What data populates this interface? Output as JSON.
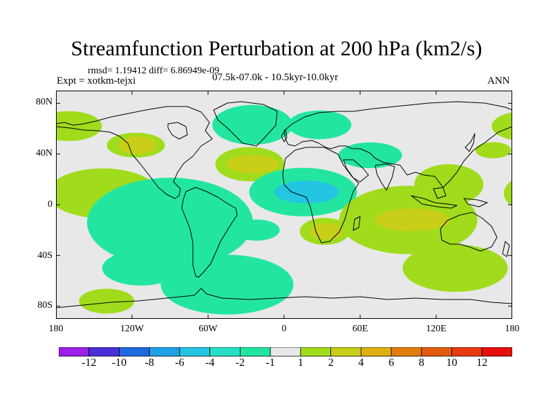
{
  "title": "Streamfunction Perturbation at 200 hPa (km2/s)",
  "stats_line": "rmsd= 1.19412 diff= 6.86949e-09",
  "experiment_line": "Expt = xotkm-tejxi",
  "period_line": "07.5k-07.0k - 10.5kyr-10.0kyr",
  "season_label": "ANN",
  "lat_ticks": [
    "80N",
    "40N",
    "0",
    "40S",
    "80S"
  ],
  "lon_ticks": [
    "180",
    "120W",
    "60W",
    "0",
    "60E",
    "120E",
    "180"
  ],
  "colorbar": {
    "labels": [
      "-12",
      "-10",
      "-8",
      "-6",
      "-4",
      "-2",
      "-1",
      "1",
      "2",
      "4",
      "6",
      "8",
      "10",
      "12"
    ],
    "colors": [
      "#9b1fe8",
      "#4a2fd9",
      "#1f6ae0",
      "#1f9fe6",
      "#23c5e0",
      "#27dfc6",
      "#22e6a0",
      "#e8e8e8",
      "#a0dc1c",
      "#c9cf18",
      "#e0b012",
      "#e37c0c",
      "#e25a0d",
      "#e63a0e",
      "#e60e0e"
    ]
  },
  "map_colors": {
    "background": "#e8e8e8",
    "positive_light": "#a0dc1c",
    "positive_mid": "#c9cf18",
    "negative_light": "#22e6a0",
    "negative_mid": "#23c5e0"
  },
  "chart_data": {
    "type": "heatmap",
    "projection": "cylindrical-equidistant",
    "lon_range": [
      -180,
      180
    ],
    "lat_range": [
      -90,
      90
    ],
    "units": "km2/s",
    "contour_levels": [
      -12,
      -10,
      -8,
      -6,
      -4,
      -2,
      -1,
      1,
      2,
      4,
      6,
      8,
      10,
      12
    ],
    "features": [
      {
        "sign": "positive",
        "max_level": 2,
        "lon": -170,
        "lat": 62
      },
      {
        "sign": "positive",
        "max_level": 4,
        "lon": -117,
        "lat": 47
      },
      {
        "sign": "negative",
        "max_level": 2,
        "lon": -25,
        "lat": 63
      },
      {
        "sign": "positive",
        "max_level": 4,
        "lon": -27,
        "lat": 32
      },
      {
        "sign": "negative",
        "max_level": 2,
        "lon": 28,
        "lat": 63
      },
      {
        "sign": "negative",
        "max_level": 2,
        "lon": 68,
        "lat": 39
      },
      {
        "sign": "positive",
        "max_level": 1,
        "lon": 165,
        "lat": 43
      },
      {
        "sign": "positive",
        "max_level": 1,
        "lon": 180,
        "lat": 66
      },
      {
        "sign": "positive",
        "max_level": 2,
        "lon": -143,
        "lat": 9
      },
      {
        "sign": "negative",
        "max_level": 2,
        "lon": -90,
        "lat": -14
      },
      {
        "sign": "negative",
        "max_level": 4,
        "lon": 15,
        "lat": 10
      },
      {
        "sign": "positive",
        "max_level": 4,
        "lon": 32,
        "lat": -21
      },
      {
        "sign": "positive",
        "max_level": 4,
        "lon": 98,
        "lat": -12
      },
      {
        "sign": "positive",
        "max_level": 2,
        "lon": 130,
        "lat": 16
      },
      {
        "sign": "negative",
        "max_level": 1,
        "lon": -22,
        "lat": -20
      },
      {
        "sign": "positive",
        "max_level": 2,
        "lon": 135,
        "lat": -50
      },
      {
        "sign": "negative",
        "max_level": 1,
        "lon": -113,
        "lat": -50
      },
      {
        "sign": "negative",
        "max_level": 1,
        "lon": -45,
        "lat": -63
      },
      {
        "sign": "positive",
        "max_level": 1,
        "lon": -140,
        "lat": -76
      }
    ]
  }
}
